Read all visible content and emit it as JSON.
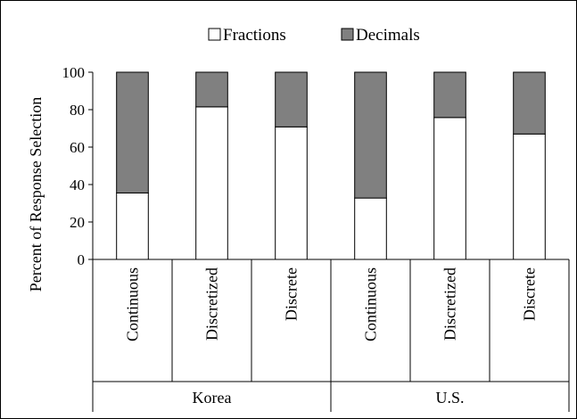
{
  "chart_data": {
    "type": "bar",
    "stacked": true,
    "orientation": "vertical",
    "ylabel": "Percent of Response Selection",
    "ylim": [
      0,
      100
    ],
    "yticks": [
      "0",
      "20",
      "40",
      "60",
      "80",
      "100"
    ],
    "grid": false,
    "legend_position": "top",
    "groups": [
      {
        "label": "Korea",
        "categories": [
          "Continuous",
          "Discretized",
          "Discrete"
        ]
      },
      {
        "label": "U.S.",
        "categories": [
          "Continuous",
          "Discretized",
          "Discrete"
        ]
      }
    ],
    "series": [
      {
        "name": "Fractions",
        "color": "#ffffff",
        "values": [
          35.5,
          81.5,
          70.8,
          32.8,
          75.8,
          67.0
        ]
      },
      {
        "name": "Decimals",
        "color": "#808080",
        "values": [
          64.5,
          18.5,
          29.2,
          67.2,
          24.2,
          33.0
        ]
      }
    ]
  }
}
